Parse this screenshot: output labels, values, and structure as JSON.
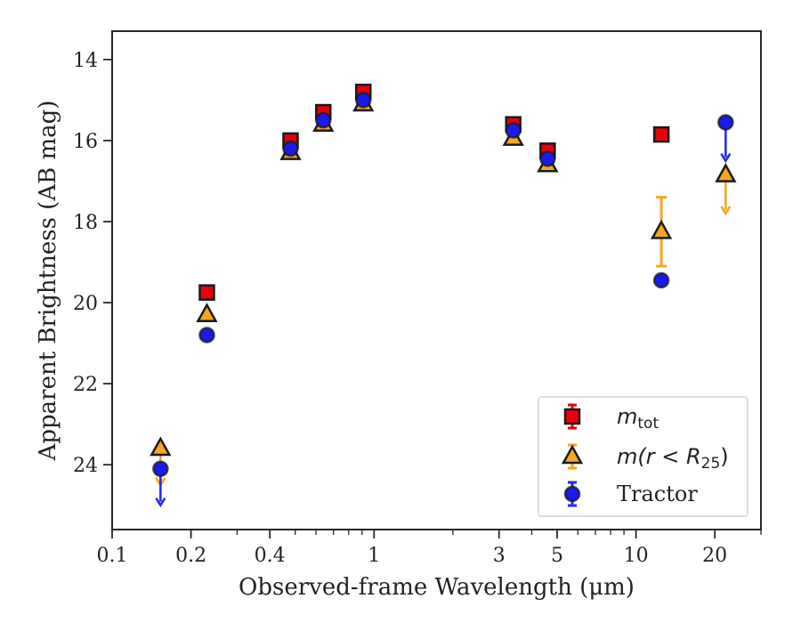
{
  "chart_data": {
    "type": "scatter",
    "xlabel": "Observed-frame Wavelength (μm)",
    "ylabel": "Apparent Brightness (AB mag)",
    "x_scale": "log",
    "xlim": [
      0.1,
      30
    ],
    "ylim": [
      25.6,
      13.3
    ],
    "y_inverted": true,
    "x_ticks": [
      {
        "value": 0.1,
        "label": "0.1"
      },
      {
        "value": 0.2,
        "label": "0.2"
      },
      {
        "value": 0.4,
        "label": "0.4"
      },
      {
        "value": 1,
        "label": "1"
      },
      {
        "value": 3,
        "label": "3"
      },
      {
        "value": 5,
        "label": "5"
      },
      {
        "value": 10,
        "label": "10"
      },
      {
        "value": 20,
        "label": "20"
      }
    ],
    "y_ticks": [
      {
        "value": 14,
        "label": "14"
      },
      {
        "value": 16,
        "label": "16"
      },
      {
        "value": 18,
        "label": "18"
      },
      {
        "value": 20,
        "label": "20"
      },
      {
        "value": 22,
        "label": "22"
      },
      {
        "value": 24,
        "label": "24"
      }
    ],
    "grid": false,
    "legend_position": "bottom-right",
    "series": [
      {
        "name": "m_tot",
        "marker": "square",
        "face_color": "#e8000b",
        "error_color": "#e8000b",
        "points": [
          {
            "x": 0.23,
            "y": 19.75
          },
          {
            "x": 0.48,
            "y": 16.0
          },
          {
            "x": 0.64,
            "y": 15.3
          },
          {
            "x": 0.91,
            "y": 14.8
          },
          {
            "x": 3.4,
            "y": 15.6
          },
          {
            "x": 4.6,
            "y": 16.25
          },
          {
            "x": 12.5,
            "y": 15.85
          }
        ]
      },
      {
        "name": "m(r < R25)",
        "marker": "triangle",
        "face_color": "#f5a623",
        "error_color": "#f5a623",
        "points": [
          {
            "x": 0.153,
            "y": 23.6,
            "upper_limit": true,
            "arrow_to": 24.5
          },
          {
            "x": 0.23,
            "y": 20.3
          },
          {
            "x": 0.48,
            "y": 16.3
          },
          {
            "x": 0.64,
            "y": 15.6
          },
          {
            "x": 0.91,
            "y": 15.1
          },
          {
            "x": 3.4,
            "y": 15.95
          },
          {
            "x": 4.6,
            "y": 16.6
          },
          {
            "x": 12.5,
            "y": 18.25,
            "yerr": 0.85
          },
          {
            "x": 22,
            "y": 16.85,
            "upper_limit": true,
            "arrow_to": 17.8
          }
        ]
      },
      {
        "name": "Tractor",
        "marker": "circle",
        "face_color": "#1a1aee",
        "error_color": "#2a2aee",
        "points": [
          {
            "x": 0.153,
            "y": 24.1,
            "upper_limit": true,
            "arrow_to": 25.0
          },
          {
            "x": 0.23,
            "y": 20.8
          },
          {
            "x": 0.48,
            "y": 16.2
          },
          {
            "x": 0.64,
            "y": 15.5
          },
          {
            "x": 0.91,
            "y": 15.0
          },
          {
            "x": 3.4,
            "y": 15.75
          },
          {
            "x": 4.6,
            "y": 16.45
          },
          {
            "x": 12.5,
            "y": 19.45
          },
          {
            "x": 22,
            "y": 15.55,
            "upper_limit": true,
            "arrow_to": 16.5
          }
        ]
      }
    ]
  },
  "legend": {
    "items": [
      {
        "main": "m",
        "sub": "tot",
        "rest": ""
      },
      {
        "main": "m(r < R",
        "sub": "25",
        "rest": ")"
      },
      {
        "main": "Tractor",
        "sub": "",
        "rest": ""
      }
    ]
  }
}
